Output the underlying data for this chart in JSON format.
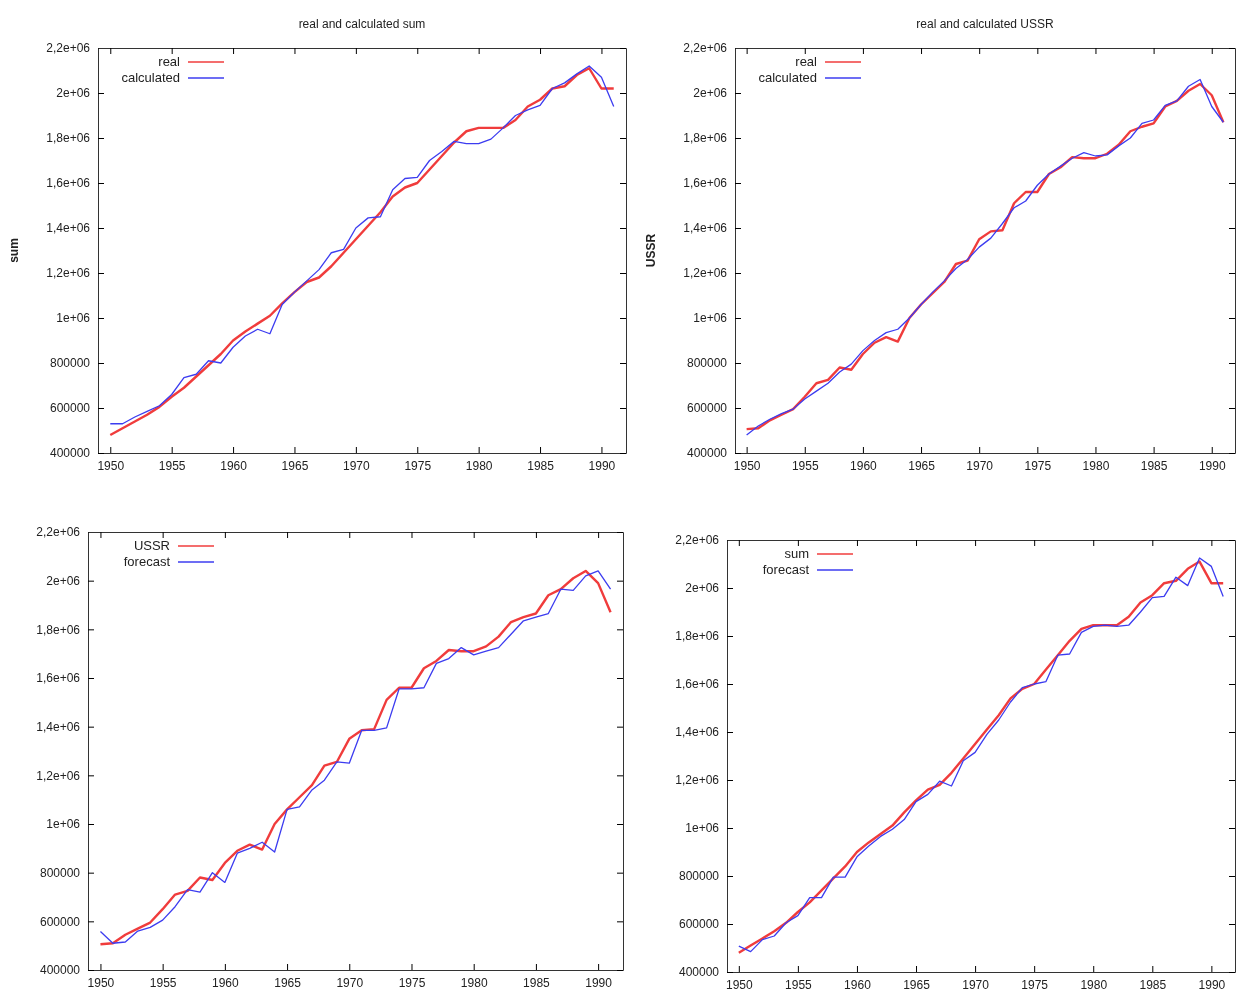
{
  "chart_data": [
    {
      "type": "line",
      "title": "real and calculated sum",
      "ylabel": "sum",
      "legend": "top left",
      "xlim": [
        1949,
        1992
      ],
      "ylim": [
        400000,
        2200000
      ],
      "xticks": [
        1950,
        1955,
        1960,
        1965,
        1970,
        1975,
        1980,
        1985,
        1990
      ],
      "yticks": [
        400000,
        600000,
        800000,
        {
          "value": 1000000,
          "label": "1e+06"
        },
        {
          "value": 1200000,
          "label": "1,2e+06"
        },
        {
          "value": 1400000,
          "label": "1,4e+06"
        },
        {
          "value": 1600000,
          "label": "1,6e+06"
        },
        {
          "value": 1800000,
          "label": "1,8e+06"
        },
        {
          "value": 2000000,
          "label": "2e+06"
        },
        {
          "value": 2200000,
          "label": "2,2e+06"
        }
      ],
      "x": [
        1950,
        1951,
        1952,
        1953,
        1954,
        1955,
        1956,
        1957,
        1958,
        1959,
        1960,
        1961,
        1962,
        1963,
        1964,
        1965,
        1966,
        1967,
        1968,
        1969,
        1970,
        1971,
        1972,
        1973,
        1974,
        1975,
        1976,
        1977,
        1978,
        1979,
        1980,
        1981,
        1982,
        1983,
        1984,
        1985,
        1986,
        1987,
        1988,
        1989,
        1990,
        1991
      ],
      "series": [
        {
          "name": "real",
          "color": "#f03c3c",
          "values": [
            480000,
            510000,
            540000,
            570000,
            605000,
            650000,
            690000,
            740000,
            790000,
            840000,
            900000,
            940000,
            975000,
            1010000,
            1065000,
            1115000,
            1160000,
            1180000,
            1230000,
            1290000,
            1350000,
            1410000,
            1470000,
            1540000,
            1580000,
            1600000,
            1660000,
            1720000,
            1780000,
            1830000,
            1845000,
            1845000,
            1845000,
            1880000,
            1940000,
            1970000,
            2020000,
            2030000,
            2080000,
            2110000,
            2020000,
            2020000
          ]
        },
        {
          "name": "calculated",
          "color": "#3c3cf0",
          "values": [
            530000,
            530000,
            560000,
            585000,
            610000,
            660000,
            735000,
            750000,
            810000,
            800000,
            870000,
            920000,
            950000,
            930000,
            1060000,
            1115000,
            1165000,
            1215000,
            1290000,
            1305000,
            1400000,
            1445000,
            1450000,
            1570000,
            1620000,
            1625000,
            1700000,
            1740000,
            1785000,
            1775000,
            1775000,
            1795000,
            1845000,
            1900000,
            1925000,
            1945000,
            2020000,
            2045000,
            2085000,
            2120000,
            2070000,
            1940000
          ]
        }
      ]
    },
    {
      "type": "line",
      "title": "real and calculated USSR",
      "ylabel": "USSR",
      "legend": "top left",
      "xlim": [
        1949,
        1992
      ],
      "ylim": [
        400000,
        2200000
      ],
      "xticks": [
        1950,
        1955,
        1960,
        1965,
        1970,
        1975,
        1980,
        1985,
        1990
      ],
      "yticks": [
        400000,
        600000,
        800000,
        {
          "value": 1000000,
          "label": "1e+06"
        },
        {
          "value": 1200000,
          "label": "1,2e+06"
        },
        {
          "value": 1400000,
          "label": "1,4e+06"
        },
        {
          "value": 1600000,
          "label": "1,6e+06"
        },
        {
          "value": 1800000,
          "label": "1,8e+06"
        },
        {
          "value": 2000000,
          "label": "2e+06"
        },
        {
          "value": 2200000,
          "label": "2,2e+06"
        }
      ],
      "x": [
        1950,
        1951,
        1952,
        1953,
        1954,
        1955,
        1956,
        1957,
        1958,
        1959,
        1960,
        1961,
        1962,
        1963,
        1964,
        1965,
        1966,
        1967,
        1968,
        1969,
        1970,
        1971,
        1972,
        1973,
        1974,
        1975,
        1976,
        1977,
        1978,
        1979,
        1980,
        1981,
        1982,
        1983,
        1984,
        1985,
        1986,
        1987,
        1988,
        1989,
        1990,
        1991
      ],
      "series": [
        {
          "name": "real",
          "color": "#f03c3c",
          "values": [
            506000,
            510000,
            545000,
            570000,
            595000,
            650000,
            710000,
            725000,
            780000,
            770000,
            840000,
            890000,
            915000,
            895000,
            1000000,
            1060000,
            1110000,
            1160000,
            1240000,
            1255000,
            1350000,
            1385000,
            1390000,
            1510000,
            1560000,
            1560000,
            1640000,
            1670000,
            1715000,
            1710000,
            1710000,
            1730000,
            1770000,
            1830000,
            1850000,
            1865000,
            1940000,
            1965000,
            2010000,
            2040000,
            1990000,
            1870000
          ]
        },
        {
          "name": "calculated",
          "color": "#3c3cf0",
          "values": [
            480000,
            520000,
            550000,
            575000,
            595000,
            640000,
            675000,
            710000,
            760000,
            795000,
            855000,
            900000,
            935000,
            950000,
            1000000,
            1060000,
            1115000,
            1165000,
            1220000,
            1260000,
            1315000,
            1355000,
            1420000,
            1490000,
            1520000,
            1590000,
            1640000,
            1675000,
            1710000,
            1735000,
            1720000,
            1725000,
            1765000,
            1800000,
            1865000,
            1880000,
            1945000,
            1965000,
            2030000,
            2060000,
            1940000,
            1870000
          ]
        }
      ]
    },
    {
      "type": "line",
      "legend": "top left",
      "xlim": [
        1949,
        1992
      ],
      "ylim": [
        400000,
        2200000
      ],
      "xticks": [
        1950,
        1955,
        1960,
        1965,
        1970,
        1975,
        1980,
        1985,
        1990
      ],
      "yticks": [
        400000,
        600000,
        800000,
        {
          "value": 1000000,
          "label": "1e+06"
        },
        {
          "value": 1200000,
          "label": "1,2e+06"
        },
        {
          "value": 1400000,
          "label": "1,4e+06"
        },
        {
          "value": 1600000,
          "label": "1,6e+06"
        },
        {
          "value": 1800000,
          "label": "1,8e+06"
        },
        {
          "value": 2000000,
          "label": "2e+06"
        },
        {
          "value": 2200000,
          "label": "2,2e+06"
        }
      ],
      "x": [
        1950,
        1951,
        1952,
        1953,
        1954,
        1955,
        1956,
        1957,
        1958,
        1959,
        1960,
        1961,
        1962,
        1963,
        1964,
        1965,
        1966,
        1967,
        1968,
        1969,
        1970,
        1971,
        1972,
        1973,
        1974,
        1975,
        1976,
        1977,
        1978,
        1979,
        1980,
        1981,
        1982,
        1983,
        1984,
        1985,
        1986,
        1987,
        1988,
        1989,
        1990,
        1991
      ],
      "series": [
        {
          "name": "USSR",
          "color": "#f03c3c",
          "values": [
            506000,
            510000,
            545000,
            570000,
            595000,
            650000,
            710000,
            725000,
            780000,
            770000,
            840000,
            890000,
            915000,
            895000,
            1000000,
            1060000,
            1110000,
            1160000,
            1240000,
            1255000,
            1350000,
            1385000,
            1390000,
            1510000,
            1560000,
            1560000,
            1640000,
            1670000,
            1715000,
            1710000,
            1710000,
            1730000,
            1770000,
            1830000,
            1850000,
            1865000,
            1940000,
            1965000,
            2010000,
            2040000,
            1990000,
            1870000
          ]
        },
        {
          "name": "forecast",
          "color": "#3c3cf0",
          "values": [
            558000,
            510000,
            515000,
            560000,
            575000,
            605000,
            660000,
            730000,
            720000,
            800000,
            760000,
            880000,
            900000,
            925000,
            885000,
            1060000,
            1070000,
            1140000,
            1180000,
            1255000,
            1250000,
            1385000,
            1385000,
            1395000,
            1555000,
            1555000,
            1560000,
            1660000,
            1680000,
            1725000,
            1695000,
            1710000,
            1725000,
            1780000,
            1835000,
            1850000,
            1865000,
            1965000,
            1960000,
            2020000,
            2040000,
            1965000
          ]
        }
      ]
    },
    {
      "type": "line",
      "legend": "top left",
      "xlim": [
        1949,
        1992
      ],
      "ylim": [
        400000,
        2200000
      ],
      "xticks": [
        1950,
        1955,
        1960,
        1965,
        1970,
        1975,
        1980,
        1985,
        1990
      ],
      "yticks": [
        400000,
        600000,
        800000,
        {
          "value": 1000000,
          "label": "1e+06"
        },
        {
          "value": 1200000,
          "label": "1,2e+06"
        },
        {
          "value": 1400000,
          "label": "1,4e+06"
        },
        {
          "value": 1600000,
          "label": "1,6e+06"
        },
        {
          "value": 1800000,
          "label": "1,8e+06"
        },
        {
          "value": 2000000,
          "label": "2e+06"
        },
        {
          "value": 2200000,
          "label": "2,2e+06"
        }
      ],
      "x": [
        1950,
        1951,
        1952,
        1953,
        1954,
        1955,
        1956,
        1957,
        1958,
        1959,
        1960,
        1961,
        1962,
        1963,
        1964,
        1965,
        1966,
        1967,
        1968,
        1969,
        1970,
        1971,
        1972,
        1973,
        1974,
        1975,
        1976,
        1977,
        1978,
        1979,
        1980,
        1981,
        1982,
        1983,
        1984,
        1985,
        1986,
        1987,
        1988,
        1989,
        1990,
        1991
      ],
      "series": [
        {
          "name": "sum",
          "color": "#f03c3c",
          "values": [
            480000,
            510000,
            540000,
            570000,
            605000,
            650000,
            690000,
            740000,
            790000,
            840000,
            900000,
            940000,
            975000,
            1010000,
            1065000,
            1115000,
            1160000,
            1180000,
            1230000,
            1290000,
            1350000,
            1410000,
            1470000,
            1540000,
            1580000,
            1600000,
            1660000,
            1720000,
            1780000,
            1830000,
            1845000,
            1845000,
            1845000,
            1880000,
            1940000,
            1970000,
            2020000,
            2030000,
            2080000,
            2110000,
            2020000,
            2020000
          ]
        },
        {
          "name": "forecast",
          "color": "#3c3cf0",
          "values": [
            508000,
            485000,
            535000,
            550000,
            605000,
            635000,
            710000,
            710000,
            795000,
            795000,
            880000,
            925000,
            965000,
            995000,
            1035000,
            1110000,
            1140000,
            1195000,
            1175000,
            1280000,
            1315000,
            1390000,
            1450000,
            1525000,
            1585000,
            1600000,
            1610000,
            1720000,
            1725000,
            1815000,
            1840000,
            1845000,
            1840000,
            1845000,
            1900000,
            1960000,
            1965000,
            2045000,
            2010000,
            2125000,
            2090000,
            1965000
          ]
        }
      ]
    }
  ]
}
